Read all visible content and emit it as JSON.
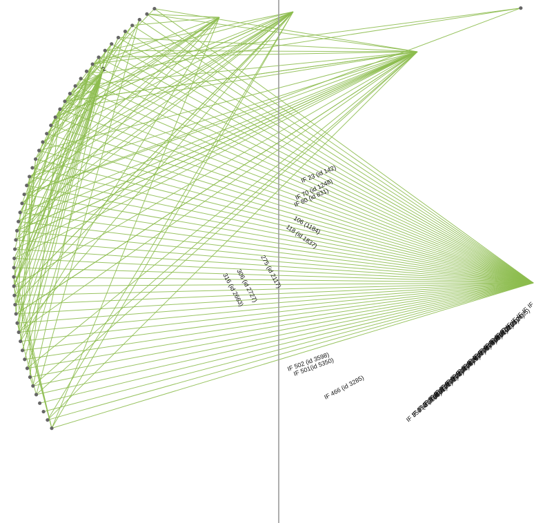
{
  "colors": {
    "background": "#ffffff",
    "edge": "#8dbd4f",
    "node": "#666666",
    "divider": "#9a9a9a"
  },
  "node_labels": {
    "top_left": "2"
  },
  "edge_labels": [
    "IF 23 (id 142)",
    "IF 70 (id 1248)",
    "IF 80 (id 831)",
    "106 (1184)",
    "118 (id 1837)",
    "275 (id 2117)",
    "306 (id 2727)",
    "316 (id 2663)",
    "IF 502 (id 3598)",
    "IF 501(id 5350)",
    "IF 466 (id 3285)"
  ],
  "cluster_labels": [
    "IF 356 (id 2660)",
    "IF 356 (id 2661)",
    "IF 357 (id 2671)",
    "IF 358 (id 2672)",
    "IF 358 (id 2673)",
    "IF 359 (id 2674)",
    "IF 360 (id 2675)",
    "IF 361 (id 2676)",
    "IF 362 (id 2677)",
    "IF 363 (id 2678)",
    "IF 364 (id 2679)",
    "IF 365 (id 2680)",
    "IF 366 (id 2681)",
    "IF 367 (id 2682)",
    "IF 368 (id 2683)",
    "IF 369 (id 2684)",
    "IF 370 (id 2685)",
    "IF",
    "IF",
    "IF",
    "IF",
    "IF",
    "IF"
  ]
}
